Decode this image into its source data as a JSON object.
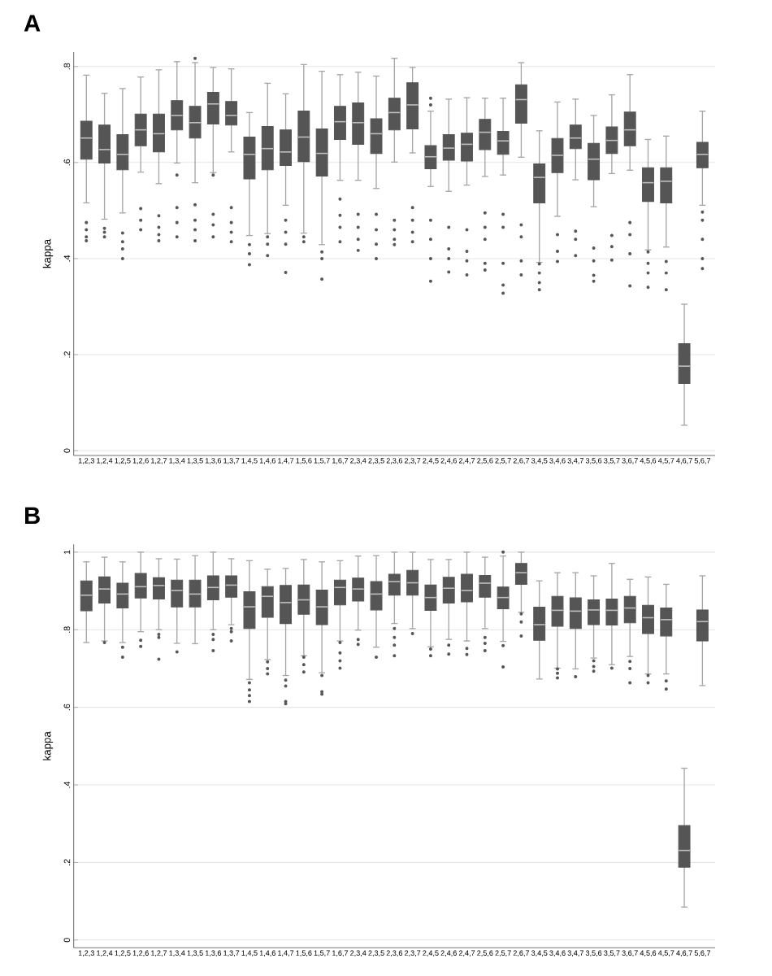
{
  "chart_data": [
    {
      "type": "box",
      "title": "A",
      "ylabel": "kappa",
      "color": "#555555",
      "grid": "y",
      "marker": "circle",
      "categories": [
        "1,2,3",
        "1,2,4",
        "1,2,5",
        "1,2,6",
        "1,2,7",
        "1,3,4",
        "1,3,5",
        "1,3,6",
        "1,3,7",
        "1,4,5",
        "1,4,6",
        "1,4,7",
        "1,5,6",
        "1,5,7",
        "1,6,7",
        "2,3,4",
        "2,3,5",
        "2,3,6",
        "2,3,7",
        "2,4,5",
        "2,4,6",
        "2,4,7",
        "2,5,6",
        "2,5,7",
        "2,6,7",
        "3,4,5",
        "3,4,6",
        "3,4,7",
        "3,5,6",
        "3,5,7",
        "3,6,7",
        "4,5,6",
        "4,5,7",
        "4,6,7",
        "5,6,7"
      ],
      "ylim": [
        -0.01,
        0.83
      ],
      "yticks": [
        0,
        {
          "value": 0.2,
          "label": ".2"
        },
        {
          "value": 0.4,
          "label": ".4"
        },
        {
          "value": 0.6,
          "label": ".6"
        },
        {
          "value": 0.8,
          "label": ".8"
        }
      ],
      "boxes": [
        {
          "low": 0.516,
          "q1": 0.607,
          "median": 0.651,
          "q3": 0.686,
          "high": 0.782,
          "outliers": [
            0.475,
            0.46,
            0.445,
            0.437
          ]
        },
        {
          "low": 0.482,
          "q1": 0.599,
          "median": 0.627,
          "q3": 0.678,
          "high": 0.744,
          "outliers": [
            0.463,
            0.455,
            0.445
          ]
        },
        {
          "low": 0.495,
          "q1": 0.585,
          "median": 0.617,
          "q3": 0.658,
          "high": 0.754,
          "outliers": [
            0.453,
            0.435,
            0.42,
            0.4
          ]
        },
        {
          "low": 0.58,
          "q1": 0.635,
          "median": 0.668,
          "q3": 0.701,
          "high": 0.778,
          "outliers": [
            0.504,
            0.48,
            0.46
          ]
        },
        {
          "low": 0.556,
          "q1": 0.622,
          "median": 0.66,
          "q3": 0.701,
          "high": 0.793,
          "outliers": [
            0.489,
            0.465,
            0.45,
            0.437
          ]
        },
        {
          "low": 0.599,
          "q1": 0.668,
          "median": 0.698,
          "q3": 0.729,
          "high": 0.81,
          "outliers": [
            0.574,
            0.506,
            0.475,
            0.445
          ]
        },
        {
          "low": 0.558,
          "q1": 0.651,
          "median": 0.683,
          "q3": 0.717,
          "high": 0.808,
          "outliers": [
            0.817,
            0.512,
            0.48,
            0.46,
            0.437
          ]
        },
        {
          "low": 0.579,
          "q1": 0.68,
          "median": 0.722,
          "q3": 0.746,
          "high": 0.798,
          "outliers": [
            0.574,
            0.492,
            0.47,
            0.445
          ]
        },
        {
          "low": 0.622,
          "q1": 0.678,
          "median": 0.698,
          "q3": 0.727,
          "high": 0.795,
          "outliers": [
            0.506,
            0.475,
            0.455,
            0.435
          ]
        },
        {
          "low": 0.448,
          "q1": 0.566,
          "median": 0.617,
          "q3": 0.653,
          "high": 0.704,
          "outliers": [
            0.429,
            0.41,
            0.387
          ]
        },
        {
          "low": 0.452,
          "q1": 0.585,
          "median": 0.629,
          "q3": 0.675,
          "high": 0.765,
          "outliers": [
            0.445,
            0.43,
            0.406
          ]
        },
        {
          "low": 0.511,
          "q1": 0.594,
          "median": 0.622,
          "q3": 0.668,
          "high": 0.743,
          "outliers": [
            0.48,
            0.455,
            0.43,
            0.371
          ]
        },
        {
          "low": 0.453,
          "q1": 0.602,
          "median": 0.653,
          "q3": 0.707,
          "high": 0.804,
          "outliers": [
            0.445,
            0.435
          ]
        },
        {
          "low": 0.429,
          "q1": 0.572,
          "median": 0.619,
          "q3": 0.67,
          "high": 0.79,
          "outliers": [
            0.414,
            0.4,
            0.357
          ]
        },
        {
          "low": 0.563,
          "q1": 0.648,
          "median": 0.685,
          "q3": 0.717,
          "high": 0.783,
          "outliers": [
            0.524,
            0.49,
            0.465,
            0.435
          ]
        },
        {
          "low": 0.563,
          "q1": 0.638,
          "median": 0.683,
          "q3": 0.724,
          "high": 0.788,
          "outliers": [
            0.492,
            0.465,
            0.44,
            0.417
          ]
        },
        {
          "low": 0.546,
          "q1": 0.619,
          "median": 0.66,
          "q3": 0.691,
          "high": 0.78,
          "outliers": [
            0.492,
            0.46,
            0.43,
            0.4
          ]
        },
        {
          "low": 0.601,
          "q1": 0.668,
          "median": 0.704,
          "q3": 0.734,
          "high": 0.817,
          "outliers": [
            0.48,
            0.46,
            0.44,
            0.429
          ]
        },
        {
          "low": 0.62,
          "q1": 0.67,
          "median": 0.72,
          "q3": 0.766,
          "high": 0.798,
          "outliers": [
            0.506,
            0.48,
            0.455,
            0.435
          ]
        },
        {
          "low": 0.55,
          "q1": 0.587,
          "median": 0.612,
          "q3": 0.635,
          "high": 0.707,
          "outliers": [
            0.734,
            0.72,
            0.48,
            0.44,
            0.4,
            0.353
          ]
        },
        {
          "low": 0.54,
          "q1": 0.605,
          "median": 0.63,
          "q3": 0.658,
          "high": 0.732,
          "outliers": [
            0.465,
            0.42,
            0.4,
            0.372
          ]
        },
        {
          "low": 0.553,
          "q1": 0.603,
          "median": 0.638,
          "q3": 0.661,
          "high": 0.735,
          "outliers": [
            0.46,
            0.415,
            0.395,
            0.366
          ]
        },
        {
          "low": 0.571,
          "q1": 0.627,
          "median": 0.663,
          "q3": 0.69,
          "high": 0.734,
          "outliers": [
            0.495,
            0.465,
            0.44,
            0.39,
            0.376
          ]
        },
        {
          "low": 0.574,
          "q1": 0.617,
          "median": 0.645,
          "q3": 0.665,
          "high": 0.734,
          "outliers": [
            0.492,
            0.465,
            0.39,
            0.345,
            0.328
          ]
        },
        {
          "low": 0.611,
          "q1": 0.682,
          "median": 0.731,
          "q3": 0.762,
          "high": 0.808,
          "outliers": [
            0.47,
            0.445,
            0.395,
            0.366
          ]
        },
        {
          "low": 0.392,
          "q1": 0.516,
          "median": 0.569,
          "q3": 0.597,
          "high": 0.666,
          "outliers": [
            0.389,
            0.37,
            0.35,
            0.335
          ]
        },
        {
          "low": 0.488,
          "q1": 0.579,
          "median": 0.615,
          "q3": 0.65,
          "high": 0.726,
          "outliers": [
            0.45,
            0.415,
            0.394
          ]
        },
        {
          "low": 0.564,
          "q1": 0.629,
          "median": 0.651,
          "q3": 0.678,
          "high": 0.732,
          "outliers": [
            0.457,
            0.44,
            0.406
          ]
        },
        {
          "low": 0.508,
          "q1": 0.564,
          "median": 0.607,
          "q3": 0.64,
          "high": 0.698,
          "outliers": [
            0.422,
            0.395,
            0.365,
            0.353
          ]
        },
        {
          "low": 0.577,
          "q1": 0.619,
          "median": 0.646,
          "q3": 0.674,
          "high": 0.741,
          "outliers": [
            0.448,
            0.425,
            0.397
          ]
        },
        {
          "low": 0.584,
          "q1": 0.635,
          "median": 0.668,
          "q3": 0.705,
          "high": 0.783,
          "outliers": [
            0.475,
            0.45,
            0.41,
            0.343
          ]
        },
        {
          "low": 0.418,
          "q1": 0.519,
          "median": 0.558,
          "q3": 0.589,
          "high": 0.648,
          "outliers": [
            0.414,
            0.39,
            0.37,
            0.34
          ]
        },
        {
          "low": 0.424,
          "q1": 0.516,
          "median": 0.561,
          "q3": 0.589,
          "high": 0.655,
          "outliers": [
            0.394,
            0.37,
            0.335
          ]
        },
        {
          "low": 0.053,
          "q1": 0.14,
          "median": 0.176,
          "q3": 0.223,
          "high": 0.305
        },
        {
          "low": 0.511,
          "q1": 0.589,
          "median": 0.617,
          "q3": 0.642,
          "high": 0.707,
          "outliers": [
            0.497,
            0.48,
            0.44,
            0.4,
            0.379
          ]
        }
      ]
    },
    {
      "type": "box",
      "title": "B",
      "ylabel": "kappa",
      "color": "#555555",
      "grid": "y",
      "marker": "circle",
      "categories": [
        "1,2,3",
        "1,2,4",
        "1,2,5",
        "1,2,6",
        "1,2,7",
        "1,3,4",
        "1,3,5",
        "1,3,6",
        "1,3,7",
        "1,4,5",
        "1,4,6",
        "1,4,7",
        "1,5,6",
        "1,5,7",
        "1,6,7",
        "2,3,4",
        "2,3,5",
        "2,3,6",
        "2,3,7",
        "2,4,5",
        "2,4,6",
        "2,4,7",
        "2,5,6",
        "2,5,7",
        "2,6,7",
        "3,4,5",
        "3,4,6",
        "3,4,7",
        "3,5,6",
        "3,5,7",
        "3,6,7",
        "4,5,6",
        "4,5,7",
        "4,6,7",
        "5,6,7"
      ],
      "ylim": [
        -0.02,
        1.02
      ],
      "yticks": [
        0,
        {
          "value": 0.2,
          "label": ".2"
        },
        {
          "value": 0.4,
          "label": ".4"
        },
        {
          "value": 0.6,
          "label": ".6"
        },
        {
          "value": 0.8,
          "label": ".8"
        },
        1
      ],
      "boxes": [
        {
          "low": 0.767,
          "q1": 0.849,
          "median": 0.889,
          "q3": 0.926,
          "high": 0.975
        },
        {
          "low": 0.771,
          "q1": 0.869,
          "median": 0.905,
          "q3": 0.936,
          "high": 0.987,
          "outliers": [
            0.767
          ]
        },
        {
          "low": 0.767,
          "q1": 0.856,
          "median": 0.892,
          "q3": 0.92,
          "high": 0.975,
          "outliers": [
            0.755,
            0.729
          ]
        },
        {
          "low": 0.795,
          "q1": 0.882,
          "median": 0.911,
          "q3": 0.945,
          "high": 1.0,
          "outliers": [
            0.773,
            0.757
          ]
        },
        {
          "low": 0.8,
          "q1": 0.879,
          "median": 0.914,
          "q3": 0.934,
          "high": 0.983,
          "outliers": [
            0.788,
            0.78,
            0.724
          ]
        },
        {
          "low": 0.765,
          "q1": 0.859,
          "median": 0.901,
          "q3": 0.928,
          "high": 0.982,
          "outliers": [
            0.743
          ]
        },
        {
          "low": 0.764,
          "q1": 0.859,
          "median": 0.892,
          "q3": 0.928,
          "high": 0.991
        },
        {
          "low": 0.8,
          "q1": 0.877,
          "median": 0.909,
          "q3": 0.939,
          "high": 1.0,
          "outliers": [
            0.788,
            0.775,
            0.746
          ]
        },
        {
          "low": 0.813,
          "q1": 0.884,
          "median": 0.915,
          "q3": 0.939,
          "high": 0.983,
          "outliers": [
            0.803,
            0.795,
            0.771
          ]
        },
        {
          "low": 0.672,
          "q1": 0.803,
          "median": 0.859,
          "q3": 0.898,
          "high": 0.978,
          "outliers": [
            0.663,
            0.645,
            0.63,
            0.615
          ]
        },
        {
          "low": 0.723,
          "q1": 0.832,
          "median": 0.886,
          "q3": 0.911,
          "high": 0.956,
          "outliers": [
            0.717,
            0.7,
            0.686
          ]
        },
        {
          "low": 0.682,
          "q1": 0.816,
          "median": 0.87,
          "q3": 0.914,
          "high": 0.958,
          "outliers": [
            0.67,
            0.655,
            0.615,
            0.609
          ]
        },
        {
          "low": 0.733,
          "q1": 0.84,
          "median": 0.877,
          "q3": 0.915,
          "high": 0.981,
          "outliers": [
            0.729,
            0.71,
            0.691
          ]
        },
        {
          "low": 0.689,
          "q1": 0.813,
          "median": 0.859,
          "q3": 0.902,
          "high": 0.975,
          "outliers": [
            0.682,
            0.64,
            0.634
          ]
        },
        {
          "low": 0.771,
          "q1": 0.864,
          "median": 0.909,
          "q3": 0.928,
          "high": 0.978,
          "outliers": [
            0.767,
            0.74,
            0.72,
            0.701
          ]
        },
        {
          "low": 0.799,
          "q1": 0.874,
          "median": 0.905,
          "q3": 0.933,
          "high": 0.99,
          "outliers": [
            0.775,
            0.762
          ]
        },
        {
          "low": 0.755,
          "q1": 0.851,
          "median": 0.892,
          "q3": 0.924,
          "high": 0.991,
          "outliers": [
            0.729
          ]
        },
        {
          "low": 0.816,
          "q1": 0.889,
          "median": 0.924,
          "q3": 0.943,
          "high": 1.0,
          "outliers": [
            0.803,
            0.78,
            0.76,
            0.733
          ]
        },
        {
          "low": 0.803,
          "q1": 0.889,
          "median": 0.921,
          "q3": 0.953,
          "high": 1.0,
          "outliers": [
            0.79
          ]
        },
        {
          "low": 0.756,
          "q1": 0.85,
          "median": 0.883,
          "q3": 0.915,
          "high": 0.981,
          "outliers": [
            0.75,
            0.733
          ]
        },
        {
          "low": 0.775,
          "q1": 0.869,
          "median": 0.907,
          "q3": 0.935,
          "high": 0.981,
          "outliers": [
            0.76,
            0.737
          ]
        },
        {
          "low": 0.771,
          "q1": 0.872,
          "median": 0.901,
          "q3": 0.943,
          "high": 1.0,
          "outliers": [
            0.752,
            0.736
          ]
        },
        {
          "low": 0.803,
          "q1": 0.884,
          "median": 0.92,
          "q3": 0.94,
          "high": 0.987,
          "outliers": [
            0.78,
            0.765,
            0.746
          ]
        },
        {
          "low": 0.77,
          "q1": 0.854,
          "median": 0.883,
          "q3": 0.91,
          "high": 0.99,
          "outliers": [
            1.0,
            0.759,
            0.704
          ]
        },
        {
          "low": 0.845,
          "q1": 0.917,
          "median": 0.947,
          "q3": 0.971,
          "high": 1.0,
          "outliers": [
            0.841,
            0.82,
            0.784
          ]
        },
        {
          "low": 0.673,
          "q1": 0.773,
          "median": 0.813,
          "q3": 0.858,
          "high": 0.926
        },
        {
          "low": 0.701,
          "q1": 0.809,
          "median": 0.85,
          "q3": 0.886,
          "high": 0.947,
          "outliers": [
            0.699,
            0.688,
            0.676
          ]
        },
        {
          "low": 0.699,
          "q1": 0.803,
          "median": 0.848,
          "q3": 0.882,
          "high": 0.947,
          "outliers": [
            0.679
          ]
        },
        {
          "low": 0.727,
          "q1": 0.813,
          "median": 0.851,
          "q3": 0.877,
          "high": 0.939,
          "outliers": [
            0.72,
            0.705,
            0.693
          ]
        },
        {
          "low": 0.71,
          "q1": 0.812,
          "median": 0.85,
          "q3": 0.879,
          "high": 0.971,
          "outliers": [
            0.701
          ]
        },
        {
          "low": 0.731,
          "q1": 0.818,
          "median": 0.856,
          "q3": 0.886,
          "high": 0.93,
          "outliers": [
            0.718,
            0.7,
            0.663
          ]
        },
        {
          "low": 0.686,
          "q1": 0.79,
          "median": 0.831,
          "q3": 0.863,
          "high": 0.936,
          "outliers": [
            0.682,
            0.663
          ]
        },
        {
          "low": 0.686,
          "q1": 0.784,
          "median": 0.826,
          "q3": 0.856,
          "high": 0.917,
          "outliers": [
            0.668,
            0.647
          ]
        },
        {
          "low": 0.085,
          "q1": 0.188,
          "median": 0.231,
          "q3": 0.295,
          "high": 0.443
        },
        {
          "low": 0.656,
          "q1": 0.771,
          "median": 0.821,
          "q3": 0.851,
          "high": 0.939
        }
      ]
    }
  ]
}
